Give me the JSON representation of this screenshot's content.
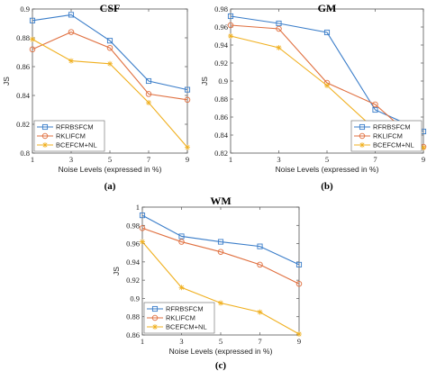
{
  "chart_data": [
    {
      "type": "line",
      "title": "CSF",
      "panel_label": "(a)",
      "xlabel": "Noise Levels (expressed in %)",
      "ylabel": "JS",
      "x": [
        1,
        3,
        5,
        7,
        9
      ],
      "xticks": [
        "1",
        "3",
        "5",
        "7",
        "9"
      ],
      "xlim": [
        1,
        9
      ],
      "ylim": [
        0.8,
        0.9
      ],
      "yticks": [
        "0.8",
        "0.82",
        "0.84",
        "0.86",
        "0.88",
        "0.9"
      ],
      "ytick_values": [
        0.8,
        0.82,
        0.84,
        0.86,
        0.88,
        0.9
      ],
      "legend_position": "bottom-left",
      "series": [
        {
          "name": "RFRBSFCM",
          "color": "#3a7dc9",
          "marker": "square",
          "values": [
            0.892,
            0.896,
            0.878,
            0.85,
            0.844
          ]
        },
        {
          "name": "RKLIFCM",
          "color": "#e07040",
          "marker": "circle",
          "values": [
            0.872,
            0.884,
            0.873,
            0.841,
            0.837
          ]
        },
        {
          "name": "BCEFCM+NL",
          "color": "#f0b020",
          "marker": "star",
          "values": [
            0.879,
            0.864,
            0.862,
            0.835,
            0.804
          ]
        }
      ]
    },
    {
      "type": "line",
      "title": "GM",
      "panel_label": "(b)",
      "xlabel": "Noise Levels (expressed in %)",
      "ylabel": "JS",
      "x": [
        1,
        3,
        5,
        7,
        9
      ],
      "xticks": [
        "1",
        "3",
        "5",
        "7",
        "9"
      ],
      "xlim": [
        1,
        9
      ],
      "ylim": [
        0.82,
        0.98
      ],
      "yticks": [
        "0.82",
        "0.84",
        "0.86",
        "0.88",
        "0.9",
        "0.92",
        "0.94",
        "0.96",
        "0.98"
      ],
      "ytick_values": [
        0.82,
        0.84,
        0.86,
        0.88,
        0.9,
        0.92,
        0.94,
        0.96,
        0.98
      ],
      "legend_position": "bottom-right",
      "series": [
        {
          "name": "RFRBSFCM",
          "color": "#3a7dc9",
          "marker": "square",
          "values": [
            0.972,
            0.964,
            0.954,
            0.868,
            0.844
          ]
        },
        {
          "name": "RKLIFCM",
          "color": "#e07040",
          "marker": "circle",
          "values": [
            0.962,
            0.958,
            0.898,
            0.874,
            0.827
          ]
        },
        {
          "name": "BCEFCM+NL",
          "color": "#f0b020",
          "marker": "star",
          "values": [
            0.95,
            0.937,
            0.895,
            0.846,
            0.826
          ]
        }
      ]
    },
    {
      "type": "line",
      "title": "WM",
      "panel_label": "(c)",
      "xlabel": "Noise Levels (expressed in %)",
      "ylabel": "JS",
      "x": [
        1,
        3,
        5,
        7,
        9
      ],
      "xticks": [
        "1",
        "3",
        "5",
        "7",
        "9"
      ],
      "xlim": [
        1,
        9
      ],
      "ylim": [
        0.86,
        1.0
      ],
      "yticks": [
        "0.86",
        "0.88",
        "0.9",
        "0.92",
        "0.94",
        "0.96",
        "0.98",
        "1"
      ],
      "ytick_values": [
        0.86,
        0.88,
        0.9,
        0.92,
        0.94,
        0.96,
        0.98,
        1.0
      ],
      "legend_position": "bottom-left",
      "series": [
        {
          "name": "RFRBSFCM",
          "color": "#3a7dc9",
          "marker": "square",
          "values": [
            0.991,
            0.968,
            0.962,
            0.957,
            0.937
          ]
        },
        {
          "name": "RKLIFCM",
          "color": "#e07040",
          "marker": "circle",
          "values": [
            0.977,
            0.962,
            0.951,
            0.937,
            0.916
          ]
        },
        {
          "name": "BCEFCM+NL",
          "color": "#f0b020",
          "marker": "star",
          "values": [
            0.962,
            0.912,
            0.895,
            0.885,
            0.861
          ]
        }
      ]
    }
  ]
}
